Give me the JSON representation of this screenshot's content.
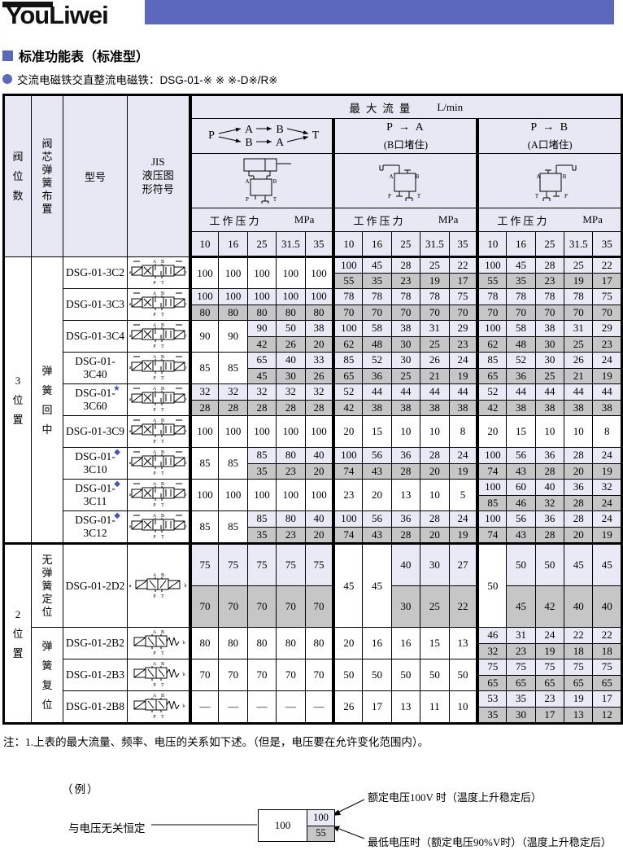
{
  "logo": {
    "text": "YouLiwei",
    "band_color": "#5a69bd"
  },
  "headings": {
    "title": "标准功能表（标准型）",
    "subtitle": "交流电磁铁交直整流电磁铁：DSG-01-※ ※ ※-D※/R※"
  },
  "table": {
    "corner": {
      "valve_positions": "阀位数",
      "spring_arrangement": "阀芯弹簧布置",
      "model": "型号",
      "jis_symbol_lines": [
        "JIS",
        "液压图",
        "形符号"
      ]
    },
    "max_flow": {
      "title": "最大流量",
      "unit": "L/min"
    },
    "pressure_label": "工作压力",
    "pressure_unit": "MPa",
    "pressures": [
      "10",
      "16",
      "25",
      "31.5",
      "35"
    ],
    "ports": {
      "A": "A",
      "B": "B",
      "P": "P",
      "T": "T",
      "a": "a",
      "b": "b"
    },
    "marker_color": "#4053c8",
    "colors": {
      "light": "#e9eaf5",
      "gray": "#c6c6c6",
      "header": "#e7e8f3"
    },
    "groups": [
      {
        "kind": "paths",
        "flow": {
          "from": "P",
          "to": "T",
          "top": [
            "A",
            "B"
          ],
          "bottom": [
            "B",
            "A"
          ]
        },
        "sketch": "cyl"
      },
      {
        "kind": "simple",
        "title": "P → A",
        "subtitle": "(B口堵住)",
        "sketch": "pa"
      },
      {
        "kind": "simple",
        "title": "P → B",
        "subtitle": "(A口堵住)",
        "sketch": "pb"
      }
    ],
    "rows": [
      {
        "model": "DSG-01-3C2",
        "sym": "3c",
        "secs": [
          {
            "text": "3位置",
            "span": 9
          },
          {
            "text": "弹簧回中",
            "span": 9
          }
        ],
        "g": [
          [
            {
              "v": "100"
            },
            {
              "v": "100"
            },
            {
              "v": "100"
            },
            {
              "v": "100"
            },
            {
              "v": "100"
            }
          ],
          [
            {
              "t": "100",
              "b": "55"
            },
            {
              "t": "45",
              "b": "35"
            },
            {
              "t": "28",
              "b": "23"
            },
            {
              "t": "25",
              "b": "19"
            },
            {
              "t": "22",
              "b": "17"
            }
          ],
          [
            {
              "t": "100",
              "b": "55"
            },
            {
              "t": "45",
              "b": "35"
            },
            {
              "t": "28",
              "b": "23"
            },
            {
              "t": "25",
              "b": "19"
            },
            {
              "t": "22",
              "b": "17"
            }
          ]
        ]
      },
      {
        "model": "DSG-01-3C3",
        "sym": "3c",
        "g": [
          [
            {
              "t": "100",
              "b": "80"
            },
            {
              "t": "100",
              "b": "80"
            },
            {
              "t": "100",
              "b": "80"
            },
            {
              "t": "100",
              "b": "80"
            },
            {
              "t": "100",
              "b": "80"
            }
          ],
          [
            {
              "t": "78",
              "b": "70"
            },
            {
              "t": "78",
              "b": "70"
            },
            {
              "t": "78",
              "b": "70"
            },
            {
              "t": "78",
              "b": "70"
            },
            {
              "t": "75",
              "b": "70"
            }
          ],
          [
            {
              "t": "78",
              "b": "70"
            },
            {
              "t": "78",
              "b": "70"
            },
            {
              "t": "78",
              "b": "70"
            },
            {
              "t": "78",
              "b": "70"
            },
            {
              "t": "75",
              "b": "70"
            }
          ]
        ]
      },
      {
        "model": "DSG-01-3C4",
        "sym": "3c",
        "g": [
          [
            {
              "v": "90"
            },
            {
              "v": "90"
            },
            {
              "t": "90",
              "b": "42"
            },
            {
              "t": "50",
              "b": "26"
            },
            {
              "t": "38",
              "b": "20"
            }
          ],
          [
            {
              "t": "100",
              "b": "62"
            },
            {
              "t": "58",
              "b": "48"
            },
            {
              "t": "38",
              "b": "30"
            },
            {
              "t": "31",
              "b": "25"
            },
            {
              "t": "29",
              "b": "23"
            }
          ],
          [
            {
              "t": "100",
              "b": "62"
            },
            {
              "t": "58",
              "b": "48"
            },
            {
              "t": "38",
              "b": "30"
            },
            {
              "t": "31",
              "b": "25"
            },
            {
              "t": "29",
              "b": "23"
            }
          ]
        ]
      },
      {
        "model": "DSG-01-3C40",
        "sym": "3c",
        "g": [
          [
            {
              "v": "85"
            },
            {
              "v": "85"
            },
            {
              "t": "65",
              "b": "45"
            },
            {
              "t": "40",
              "b": "30"
            },
            {
              "t": "33",
              "b": "26"
            }
          ],
          [
            {
              "t": "85",
              "b": "65"
            },
            {
              "t": "52",
              "b": "36"
            },
            {
              "t": "30",
              "b": "25"
            },
            {
              "t": "26",
              "b": "21"
            },
            {
              "t": "24",
              "b": "19"
            }
          ],
          [
            {
              "t": "85",
              "b": "65"
            },
            {
              "t": "52",
              "b": "36"
            },
            {
              "t": "30",
              "b": "25"
            },
            {
              "t": "26",
              "b": "21"
            },
            {
              "t": "24",
              "b": "19"
            }
          ]
        ]
      },
      {
        "model": "DSG-01-3C60",
        "marker": "★",
        "sym": "3c",
        "g": [
          [
            {
              "t": "32",
              "b": "28"
            },
            {
              "t": "32",
              "b": "28"
            },
            {
              "t": "32",
              "b": "28"
            },
            {
              "t": "32",
              "b": "28"
            },
            {
              "t": "32",
              "b": "28"
            }
          ],
          [
            {
              "t": "52",
              "b": "42"
            },
            {
              "t": "44",
              "b": "38"
            },
            {
              "t": "44",
              "b": "38"
            },
            {
              "t": "44",
              "b": "38"
            },
            {
              "t": "44",
              "b": "38"
            }
          ],
          [
            {
              "t": "52",
              "b": "42"
            },
            {
              "t": "44",
              "b": "38"
            },
            {
              "t": "44",
              "b": "38"
            },
            {
              "t": "44",
              "b": "38"
            },
            {
              "t": "44",
              "b": "38"
            }
          ]
        ]
      },
      {
        "model": "DSG-01-3C9",
        "sym": "3c",
        "g": [
          [
            {
              "v": "100"
            },
            {
              "v": "100"
            },
            {
              "v": "100"
            },
            {
              "v": "100"
            },
            {
              "v": "100"
            }
          ],
          [
            {
              "v": "20"
            },
            {
              "v": "15"
            },
            {
              "v": "10"
            },
            {
              "v": "10"
            },
            {
              "v": "8"
            }
          ],
          [
            {
              "v": "20"
            },
            {
              "v": "15"
            },
            {
              "v": "10"
            },
            {
              "v": "10"
            },
            {
              "v": "8"
            }
          ]
        ]
      },
      {
        "model": "DSG-01-3C10",
        "marker": "◆",
        "sym": "3c",
        "g": [
          [
            {
              "v": "85"
            },
            {
              "v": "85"
            },
            {
              "t": "85",
              "b": "35"
            },
            {
              "t": "80",
              "b": "23"
            },
            {
              "t": "40",
              "b": "20"
            }
          ],
          [
            {
              "t": "100",
              "b": "74"
            },
            {
              "t": "56",
              "b": "43"
            },
            {
              "t": "36",
              "b": "28"
            },
            {
              "t": "28",
              "b": "20"
            },
            {
              "t": "24",
              "b": "19"
            }
          ],
          [
            {
              "t": "100",
              "b": "74"
            },
            {
              "t": "56",
              "b": "43"
            },
            {
              "t": "36",
              "b": "28"
            },
            {
              "t": "28",
              "b": "20"
            },
            {
              "t": "24",
              "b": "19"
            }
          ]
        ]
      },
      {
        "model": "DSG-01-3C11",
        "marker": "◆",
        "sym": "3c",
        "g": [
          [
            {
              "v": "100"
            },
            {
              "v": "100"
            },
            {
              "v": "100"
            },
            {
              "v": "100"
            },
            {
              "v": "100"
            }
          ],
          [
            {
              "v": "23"
            },
            {
              "v": "20"
            },
            {
              "v": "13"
            },
            {
              "v": "10"
            },
            {
              "v": "5"
            }
          ],
          [
            {
              "t": "100",
              "b": "85"
            },
            {
              "t": "60",
              "b": "46"
            },
            {
              "t": "40",
              "b": "32"
            },
            {
              "t": "36",
              "b": "28"
            },
            {
              "t": "32",
              "b": "24"
            }
          ]
        ]
      },
      {
        "model": "DSG-01-3C12",
        "marker": "◆",
        "sym": "3c",
        "g": [
          [
            {
              "v": "85"
            },
            {
              "v": "85"
            },
            {
              "t": "85",
              "b": "35"
            },
            {
              "t": "80",
              "b": "23"
            },
            {
              "t": "40",
              "b": "20"
            }
          ],
          [
            {
              "t": "100",
              "b": "74"
            },
            {
              "t": "56",
              "b": "43"
            },
            {
              "t": "36",
              "b": "28"
            },
            {
              "t": "28",
              "b": "20"
            },
            {
              "t": "24",
              "b": "19"
            }
          ],
          [
            {
              "t": "100",
              "b": "74"
            },
            {
              "t": "56",
              "b": "43"
            },
            {
              "t": "36",
              "b": "28"
            },
            {
              "t": "28",
              "b": "20"
            },
            {
              "t": "24",
              "b": "19"
            }
          ]
        ]
      },
      {
        "model": "DSG-01-2D2",
        "sym": "2d",
        "h": 103,
        "thick_top": true,
        "secs": [
          {
            "text": "2位置",
            "span": 4
          },
          {
            "text": "无弹簧定位",
            "span": 1
          }
        ],
        "g": [
          [
            {
              "t": "75",
              "b": "70"
            },
            {
              "t": "75",
              "b": "70"
            },
            {
              "t": "75",
              "b": "70"
            },
            {
              "t": "75",
              "b": "70"
            },
            {
              "t": "75",
              "b": "70"
            }
          ],
          [
            {
              "v": "45"
            },
            {
              "v": "45"
            },
            {
              "t": "40",
              "b": "30"
            },
            {
              "t": "30",
              "b": "25"
            },
            {
              "t": "27",
              "b": "22"
            }
          ],
          [
            {
              "v": "50"
            },
            {
              "t": "50",
              "b": "45"
            },
            {
              "t": "50",
              "b": "42"
            },
            {
              "t": "45",
              "b": "40"
            },
            {
              "t": "45",
              "b": "40"
            }
          ]
        ]
      },
      {
        "model": "DSG-01-2B2",
        "sym": "2b",
        "secs": [
          {
            "text": "弹簧复位",
            "span": 3
          }
        ],
        "g": [
          [
            {
              "v": "80"
            },
            {
              "v": "80"
            },
            {
              "v": "80"
            },
            {
              "v": "80"
            },
            {
              "v": "80"
            }
          ],
          [
            {
              "v": "20"
            },
            {
              "v": "16"
            },
            {
              "v": "16"
            },
            {
              "v": "15"
            },
            {
              "v": "13"
            }
          ],
          [
            {
              "t": "46",
              "b": "32"
            },
            {
              "t": "31",
              "b": "23"
            },
            {
              "t": "24",
              "b": "19"
            },
            {
              "t": "22",
              "b": "18"
            },
            {
              "t": "22",
              "b": "18"
            }
          ]
        ]
      },
      {
        "model": "DSG-01-2B3",
        "sym": "2b",
        "g": [
          [
            {
              "v": "70"
            },
            {
              "v": "70"
            },
            {
              "v": "70"
            },
            {
              "v": "70"
            },
            {
              "v": "70"
            }
          ],
          [
            {
              "v": "50"
            },
            {
              "v": "50"
            },
            {
              "v": "50"
            },
            {
              "v": "50"
            },
            {
              "v": "50"
            }
          ],
          [
            {
              "t": "75",
              "b": "65"
            },
            {
              "t": "75",
              "b": "65"
            },
            {
              "t": "75",
              "b": "65"
            },
            {
              "t": "75",
              "b": "65"
            },
            {
              "t": "75",
              "b": "65"
            }
          ]
        ]
      },
      {
        "model": "DSG-01-2B8",
        "sym": "2b",
        "g": [
          [
            {
              "v": "—"
            },
            {
              "v": "—"
            },
            {
              "v": "—"
            },
            {
              "v": "—"
            },
            {
              "v": "—"
            }
          ],
          [
            {
              "v": "26"
            },
            {
              "v": "17"
            },
            {
              "v": "13"
            },
            {
              "v": "11"
            },
            {
              "v": "10"
            }
          ],
          [
            {
              "t": "53",
              "b": "35"
            },
            {
              "t": "35",
              "b": "30"
            },
            {
              "t": "23",
              "b": "17"
            },
            {
              "t": "19",
              "b": "13"
            },
            {
              "t": "17",
              "b": "12"
            }
          ]
        ]
      }
    ]
  },
  "note": "注：1.上表的最大流量、频率、电压的关系如下述。（但是，电压要在允许变化范围内）。",
  "example": {
    "caption": "（例）",
    "constant_label": "与电压无关恒定",
    "base_value": "100",
    "rated_value": "100",
    "min_value": "55",
    "rated_note": "额定电压100V 时（温度上升稳定后）",
    "min_note": "最低电压时（额定电压90%V时）（温度上升稳定后）"
  }
}
